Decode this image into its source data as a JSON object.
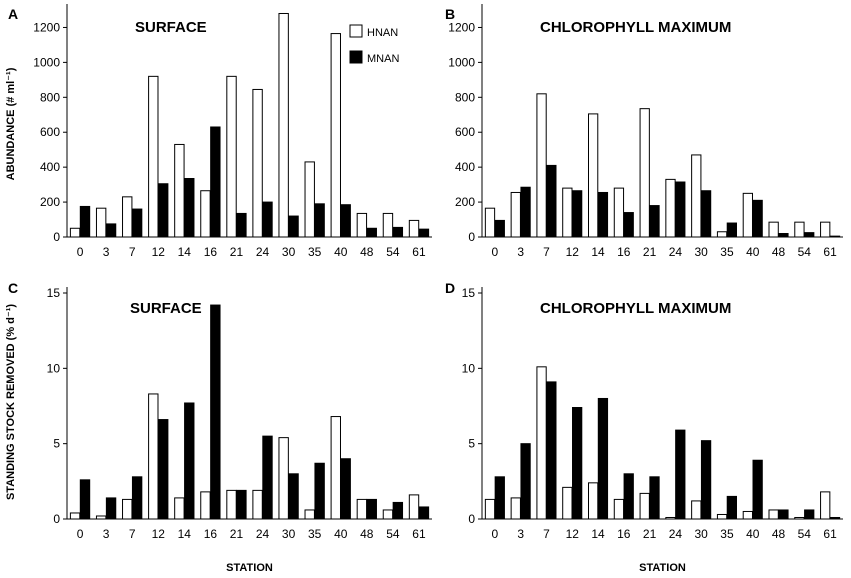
{
  "figure": {
    "panels": [
      "A",
      "B",
      "C",
      "D"
    ],
    "legend": {
      "hnan": "HNAN",
      "mnan": "MNAN"
    },
    "x_axis_title": "STATION",
    "y_axis_title_top": "ABUNDANCE (# ml⁻¹)",
    "y_axis_title_bottom": "STANDING STOCK REMOVED (% d⁻¹)"
  },
  "colors": {
    "hnan": "#ffffff",
    "mnan": "#000000",
    "axis": "#000000"
  },
  "chart_data": [
    {
      "panel": "A",
      "type": "bar",
      "title": "SURFACE",
      "xlabel": "",
      "ylabel": "ABUNDANCE (# ml⁻¹)",
      "categories": [
        "0",
        "3",
        "7",
        "12",
        "14",
        "16",
        "21",
        "24",
        "30",
        "35",
        "40",
        "48",
        "54",
        "61"
      ],
      "ylim": [
        0,
        1300
      ],
      "yticks": [
        0,
        200,
        400,
        600,
        800,
        1000,
        1200
      ],
      "series": [
        {
          "name": "HNAN",
          "values": [
            50,
            165,
            230,
            920,
            530,
            265,
            920,
            845,
            1280,
            430,
            1165,
            135,
            135,
            95
          ]
        },
        {
          "name": "MNAN",
          "values": [
            175,
            75,
            160,
            305,
            335,
            630,
            135,
            200,
            120,
            190,
            185,
            50,
            55,
            45
          ]
        }
      ]
    },
    {
      "panel": "B",
      "type": "bar",
      "title": "CHLOROPHYLL MAXIMUM",
      "xlabel": "",
      "ylabel": "",
      "categories": [
        "0",
        "3",
        "7",
        "12",
        "14",
        "16",
        "21",
        "24",
        "30",
        "35",
        "40",
        "48",
        "54",
        "61"
      ],
      "ylim": [
        0,
        1300
      ],
      "yticks": [
        0,
        200,
        400,
        600,
        800,
        1000,
        1200
      ],
      "series": [
        {
          "name": "HNAN",
          "values": [
            165,
            255,
            820,
            280,
            705,
            280,
            735,
            330,
            470,
            30,
            250,
            85,
            85,
            85
          ]
        },
        {
          "name": "MNAN",
          "values": [
            95,
            285,
            410,
            265,
            255,
            140,
            180,
            315,
            265,
            80,
            210,
            20,
            25,
            5
          ]
        }
      ]
    },
    {
      "panel": "C",
      "type": "bar",
      "title": "SURFACE",
      "xlabel": "STATION",
      "ylabel": "STANDING STOCK REMOVED (% d⁻¹)",
      "categories": [
        "0",
        "3",
        "7",
        "12",
        "14",
        "16",
        "21",
        "24",
        "30",
        "35",
        "40",
        "48",
        "54",
        "61"
      ],
      "ylim": [
        0,
        15
      ],
      "yticks": [
        0,
        5,
        10,
        15
      ],
      "series": [
        {
          "name": "HNAN",
          "values": [
            0.4,
            0.2,
            1.3,
            8.3,
            1.4,
            1.8,
            1.9,
            1.9,
            5.4,
            0.6,
            6.8,
            1.3,
            0.6,
            1.6
          ]
        },
        {
          "name": "MNAN",
          "values": [
            2.6,
            1.4,
            2.8,
            6.6,
            7.7,
            14.2,
            1.9,
            5.5,
            3.0,
            3.7,
            4.0,
            1.3,
            1.1,
            0.8
          ]
        }
      ]
    },
    {
      "panel": "D",
      "type": "bar",
      "title": "CHLOROPHYLL MAXIMUM",
      "xlabel": "STATION",
      "ylabel": "",
      "categories": [
        "0",
        "3",
        "7",
        "12",
        "14",
        "16",
        "21",
        "24",
        "30",
        "35",
        "40",
        "48",
        "54",
        "61"
      ],
      "ylim": [
        0,
        15
      ],
      "yticks": [
        0,
        5,
        10,
        15
      ],
      "series": [
        {
          "name": "HNAN",
          "values": [
            1.3,
            1.4,
            10.1,
            2.1,
            2.4,
            1.3,
            1.7,
            0.1,
            1.2,
            0.3,
            0.5,
            0.6,
            0.1,
            1.8
          ]
        },
        {
          "name": "MNAN",
          "values": [
            2.8,
            5.0,
            9.1,
            7.4,
            8.0,
            3.0,
            2.8,
            5.9,
            5.2,
            1.5,
            3.9,
            0.6,
            0.6,
            0.1
          ]
        }
      ]
    }
  ]
}
